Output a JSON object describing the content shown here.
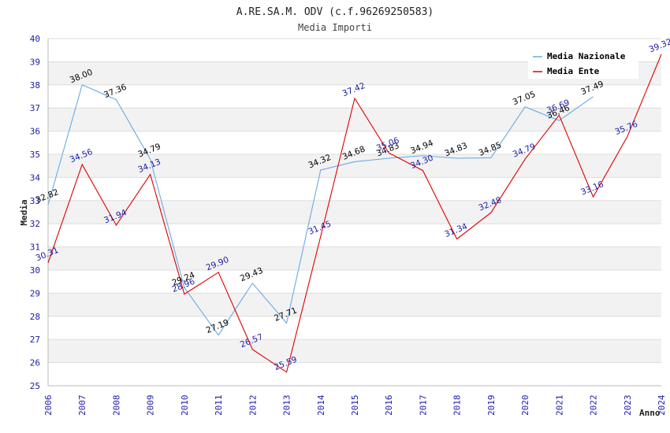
{
  "chart_data": {
    "type": "line",
    "title": "A.RE.SA.M. ODV (c.f.96269250583)",
    "subtitle": "Media Importi",
    "xlabel": "Anno",
    "ylabel": "Media",
    "ylim": [
      25,
      40
    ],
    "yticks": [
      "25",
      "26",
      "27",
      "28",
      "29",
      "30",
      "31",
      "32",
      "33",
      "34",
      "35",
      "36",
      "37",
      "38",
      "39",
      "40"
    ],
    "x": [
      "2006",
      "2007",
      "2008",
      "2009",
      "2010",
      "2011",
      "2012",
      "2013",
      "2014",
      "2015",
      "2016",
      "2017",
      "2018",
      "2019",
      "2020",
      "2021",
      "2022",
      "2023",
      "2024"
    ],
    "legend_position": "top-right",
    "grid": true,
    "series": [
      {
        "name": "Media Nazionale",
        "color": "#6aaae4",
        "values": [
          32.82,
          38.0,
          37.36,
          34.79,
          29.24,
          27.19,
          29.43,
          27.71,
          34.32,
          34.68,
          34.83,
          34.94,
          34.83,
          34.85,
          37.05,
          36.46,
          37.49,
          null,
          null
        ],
        "labels": [
          "32.82",
          "38.00",
          "37.36",
          "34.79",
          "29.24",
          "27.19",
          "29.43",
          "27.71",
          "34.32",
          "34.68",
          "34.83",
          "34.94",
          "34.83",
          "34.85",
          "37.05",
          "36.46",
          "37.49",
          "",
          ""
        ]
      },
      {
        "name": "Media Ente",
        "color": "#dd0000",
        "values": [
          30.31,
          34.56,
          31.94,
          34.13,
          28.96,
          29.9,
          26.57,
          25.59,
          31.45,
          37.42,
          35.06,
          34.3,
          31.34,
          32.48,
          34.79,
          36.69,
          33.16,
          35.76,
          39.32
        ],
        "labels": [
          "30.31",
          "34.56",
          "31.94",
          "34.13",
          "28.96",
          "29.90",
          "26.57",
          "25.59",
          "31.45",
          "37.42",
          "35.06",
          "34.30",
          "31.34",
          "32.48",
          "34.79",
          "36.69",
          "33.16",
          "35.76",
          "39.32"
        ]
      }
    ]
  }
}
